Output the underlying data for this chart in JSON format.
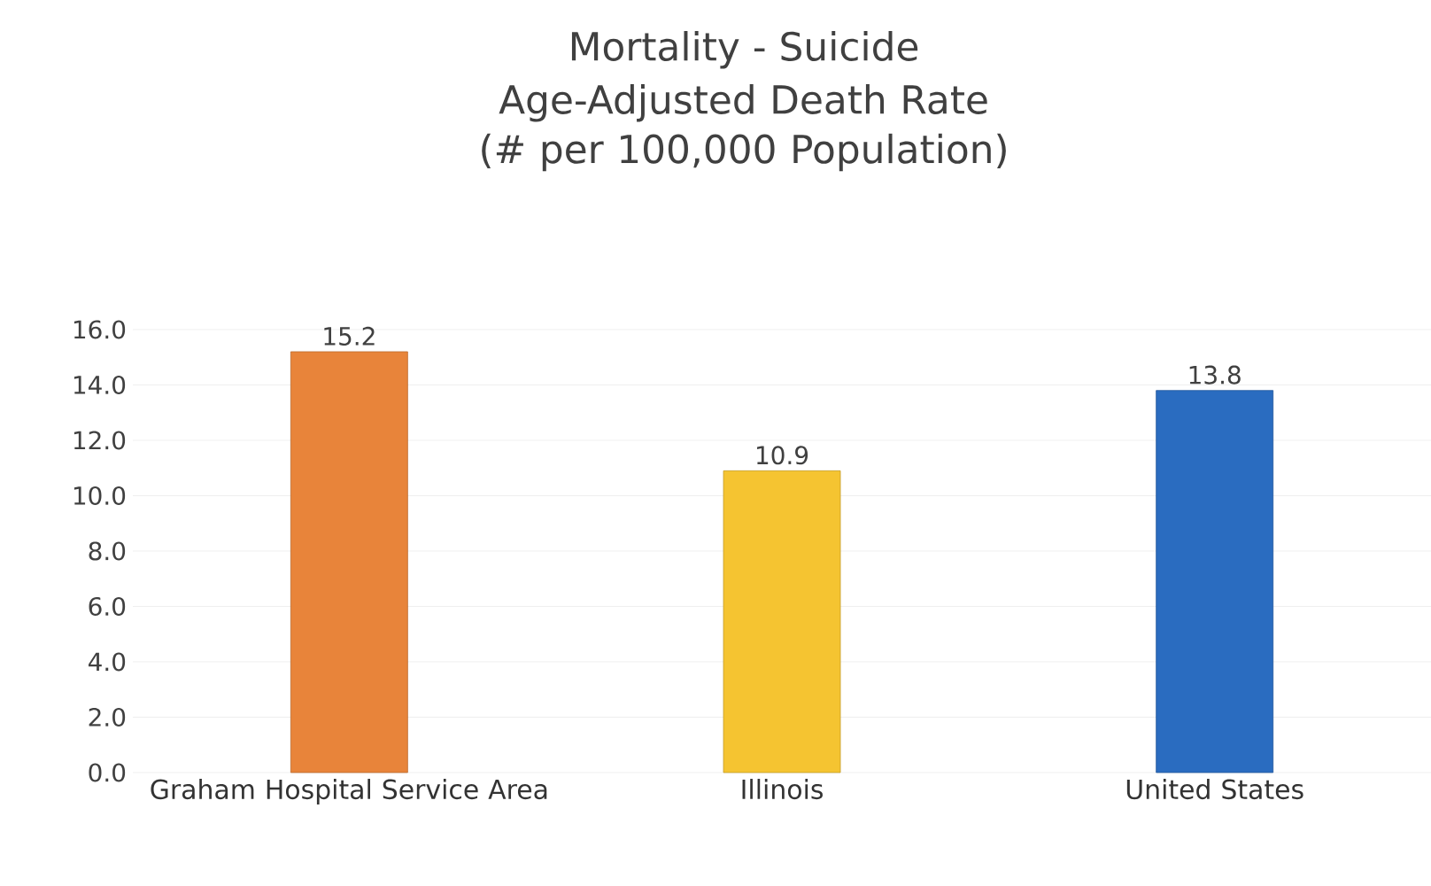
{
  "chart_data": {
    "type": "bar",
    "title": "Mortality - Suicide",
    "subtitle": "Age-Adjusted Death Rate\n(# per 100,000 Population)",
    "categories": [
      "Graham Hospital Service Area",
      "Illinois",
      "United States"
    ],
    "values": [
      15.2,
      10.9,
      13.8
    ],
    "colors": [
      "#e8843a",
      "#f5c431",
      "#2a6cc0"
    ],
    "ylim": [
      0,
      16
    ],
    "yticks": [
      {
        "value": 0,
        "label": "0.0"
      },
      {
        "value": 2,
        "label": "2.0"
      },
      {
        "value": 4,
        "label": "4.0"
      },
      {
        "value": 6,
        "label": "6.0"
      },
      {
        "value": 8,
        "label": "8.0"
      },
      {
        "value": 10,
        "label": "10.0"
      },
      {
        "value": 12,
        "label": "12.0"
      },
      {
        "value": 14,
        "label": "14.0"
      },
      {
        "value": 16,
        "label": "16.0"
      }
    ],
    "grid": "y",
    "data_labels": true
  }
}
